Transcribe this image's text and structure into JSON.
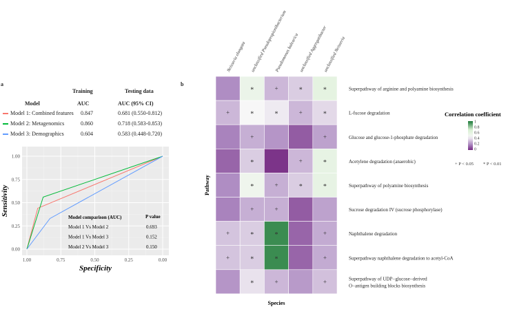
{
  "panel_a": {
    "label": "a",
    "table": {
      "headers": {
        "model": "Model",
        "training": "Training",
        "training_sub": "AUC",
        "testing": "Testing data",
        "testing_sub": "AUC (95% CI)"
      },
      "rows": [
        {
          "model": "Model 1: Combined features",
          "color": "#f8766d",
          "training_auc": "0.847",
          "testing_auc": "0.681 (0.550-0.812)"
        },
        {
          "model": "Model 2: Metagenomics",
          "color": "#00ba38",
          "training_auc": "0.860",
          "testing_auc": "0.718 (0.583-0.853)"
        },
        {
          "model": "Model 3: Demographics",
          "color": "#619cff",
          "training_auc": "0.604",
          "testing_auc": "0.583 (0.448-0.720)"
        }
      ]
    },
    "comparison": {
      "header": "Model comparison (AUC)",
      "p_header": "P value",
      "rows": [
        {
          "label": "Model 1 Vs Model 2",
          "p": "0.693"
        },
        {
          "label": "Model 1 Vs Model 3",
          "p": "0.152"
        },
        {
          "label": "Model 2 Vs Model 3",
          "p": "0.150"
        }
      ]
    }
  },
  "panel_b": {
    "label": "b",
    "xlabel": "Species",
    "ylabel": "Pathway",
    "legend": {
      "title": "Correlation coefficient",
      "ticks": [
        "1",
        "0.8",
        "0.6",
        "0.4",
        "0.2",
        "0"
      ],
      "sig1": "+ P < 0.05",
      "sig2": "* P < 0.01"
    }
  },
  "chart_data": [
    {
      "type": "line",
      "title": "",
      "xlabel": "Specificity",
      "ylabel": "Sensitivity",
      "xlim": [
        1,
        0
      ],
      "ylim": [
        0,
        1
      ],
      "xticks": [
        "1.00",
        "0.75",
        "0.50",
        "0.25",
        "0.00"
      ],
      "yticks": [
        "0.00",
        "0.25",
        "0.50",
        "0.75",
        "1.00"
      ],
      "grid": true,
      "series": [
        {
          "name": "Model 1: Combined features",
          "color": "#f8766d",
          "x": [
            1,
            0.92,
            0
          ],
          "y": [
            0,
            0.44,
            1
          ]
        },
        {
          "name": "Model 2: Metagenomics",
          "color": "#00ba38",
          "x": [
            1,
            0.88,
            0
          ],
          "y": [
            0,
            0.56,
            1
          ]
        },
        {
          "name": "Model 3: Demographics",
          "color": "#619cff",
          "x": [
            1,
            0.83,
            0
          ],
          "y": [
            0,
            0.33,
            1
          ]
        }
      ]
    },
    {
      "type": "heatmap",
      "x": [
        "Neisseria elongata",
        "unclassified Pseudopropionibacterium",
        "Pseudomonas balearica",
        "unclassified Aggregatibacter",
        "unclassified Neisseria"
      ],
      "y": [
        "Superpathway of arginine and polyamine biosynthesis",
        "L-fucose degradation",
        "Glucose and glucose-1-phosphate degradation",
        "Acetylene degradation (anaerobic)",
        "Superpathway of polyamine biosynthesis",
        "Sucrose degradation IV (sucrose phosphorylase)",
        "Naphthalene degradation",
        "Superpathway naphthalene degradation to acetyl-CoA",
        "Superpathway of UDP−glucose−derived O−antigen building blocks biosynthesis"
      ],
      "values": [
        [
          0.2,
          0.55,
          0.3,
          0.35,
          0.6
        ],
        [
          0.3,
          0.45,
          0.42,
          0.3,
          0.38
        ],
        [
          0.18,
          0.28,
          0.22,
          0.1,
          0.25
        ],
        [
          0.12,
          0.35,
          0.02,
          0.3,
          0.58
        ],
        [
          0.2,
          0.52,
          0.28,
          0.35,
          0.58
        ],
        [
          0.18,
          0.28,
          0.28,
          0.1,
          0.25
        ],
        [
          0.33,
          0.35,
          0.95,
          0.12,
          0.27
        ],
        [
          0.33,
          0.35,
          0.95,
          0.12,
          0.27
        ],
        [
          0.22,
          0.4,
          0.3,
          0.23,
          0.32
        ]
      ],
      "marks": [
        [
          "",
          "*",
          "+",
          "*",
          "*"
        ],
        [
          "+",
          "*",
          "*",
          "+",
          "*"
        ],
        [
          "",
          "+",
          "",
          "",
          "+"
        ],
        [
          "",
          "*",
          "",
          "+",
          "*"
        ],
        [
          "",
          "*",
          "+",
          "*",
          "*"
        ],
        [
          "",
          "+",
          "+",
          "",
          ""
        ],
        [
          "+",
          "*",
          "*",
          "",
          "+"
        ],
        [
          "+",
          "*",
          "*",
          "",
          "+"
        ],
        [
          "",
          "*",
          "+",
          "",
          "+"
        ]
      ],
      "zlim": [
        0,
        1
      ]
    }
  ]
}
